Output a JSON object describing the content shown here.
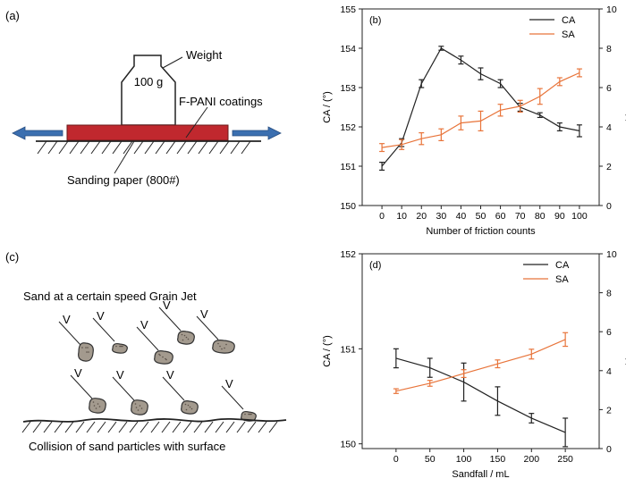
{
  "panels": {
    "a": {
      "tag": "(a)",
      "weight_label": "Weight",
      "mass_label": "100 g",
      "coating_label": "F-PANI coatings",
      "paper_label": "Sanding paper (800#)",
      "colors": {
        "coating": "#c0282e",
        "arrow": "#3b6fb0"
      }
    },
    "c": {
      "tag": "(c)",
      "title": "Sand at a certain speed Grain Jet",
      "caption": "Collision of sand particles with surface",
      "velocity_symbol": "V",
      "colors": {
        "particle": "#a39a8e",
        "particle_dot": "#5a5048"
      }
    }
  },
  "chart_data": [
    {
      "type": "line",
      "tag": "(b)",
      "xlabel": "Number of friction counts",
      "ylabel": "CA / (°)",
      "y2label": "SA / (°)",
      "x": [
        0,
        10,
        20,
        30,
        40,
        50,
        60,
        70,
        80,
        90,
        100
      ],
      "xlim": [
        -10,
        110
      ],
      "ylim": [
        150,
        155
      ],
      "y2lim": [
        0,
        10
      ],
      "yticks": [
        150,
        151,
        152,
        153,
        154,
        155
      ],
      "y2ticks": [
        0,
        2,
        4,
        6,
        8,
        10
      ],
      "xticks": [
        0,
        10,
        20,
        30,
        40,
        50,
        60,
        70,
        80,
        90,
        100
      ],
      "legend_position": "top-right",
      "series": [
        {
          "name": "CA",
          "axis": "left",
          "color": "#222222",
          "values": [
            151.0,
            151.6,
            153.1,
            154.0,
            153.7,
            153.35,
            153.1,
            152.5,
            152.3,
            152.0,
            151.9
          ],
          "errors": [
            0.1,
            0.1,
            0.1,
            0.05,
            0.1,
            0.15,
            0.1,
            0.1,
            0.06,
            0.1,
            0.15
          ]
        },
        {
          "name": "SA",
          "axis": "right",
          "color": "#e8743a",
          "values": [
            2.95,
            3.1,
            3.4,
            3.6,
            4.2,
            4.3,
            4.85,
            5.05,
            5.55,
            6.3,
            6.75
          ],
          "errors": [
            0.2,
            0.25,
            0.3,
            0.3,
            0.35,
            0.5,
            0.3,
            0.3,
            0.4,
            0.2,
            0.2
          ]
        }
      ]
    },
    {
      "type": "line",
      "tag": "(d)",
      "xlabel": "Sandfall / mL",
      "ylabel": "CA / (°)",
      "y2label": "SA / (°)",
      "x": [
        0,
        50,
        100,
        150,
        200,
        250
      ],
      "xlim": [
        -50,
        300
      ],
      "ylim": [
        149.95,
        152
      ],
      "y2lim": [
        0,
        10
      ],
      "yticks": [
        150,
        151,
        152
      ],
      "y2ticks": [
        0,
        2,
        4,
        6,
        8,
        10
      ],
      "xticks": [
        0,
        50,
        100,
        150,
        200,
        250
      ],
      "legend_position": "top-left",
      "series": [
        {
          "name": "CA",
          "axis": "left",
          "color": "#222222",
          "values": [
            150.9,
            150.8,
            150.65,
            150.45,
            150.27,
            150.12
          ],
          "errors": [
            0.1,
            0.1,
            0.2,
            0.15,
            0.05,
            0.15
          ]
        },
        {
          "name": "SA",
          "axis": "right",
          "color": "#e8743a",
          "values": [
            2.95,
            3.35,
            3.85,
            4.35,
            4.85,
            5.6
          ],
          "errors": [
            0.12,
            0.15,
            0.2,
            0.2,
            0.25,
            0.35
          ]
        }
      ]
    }
  ]
}
